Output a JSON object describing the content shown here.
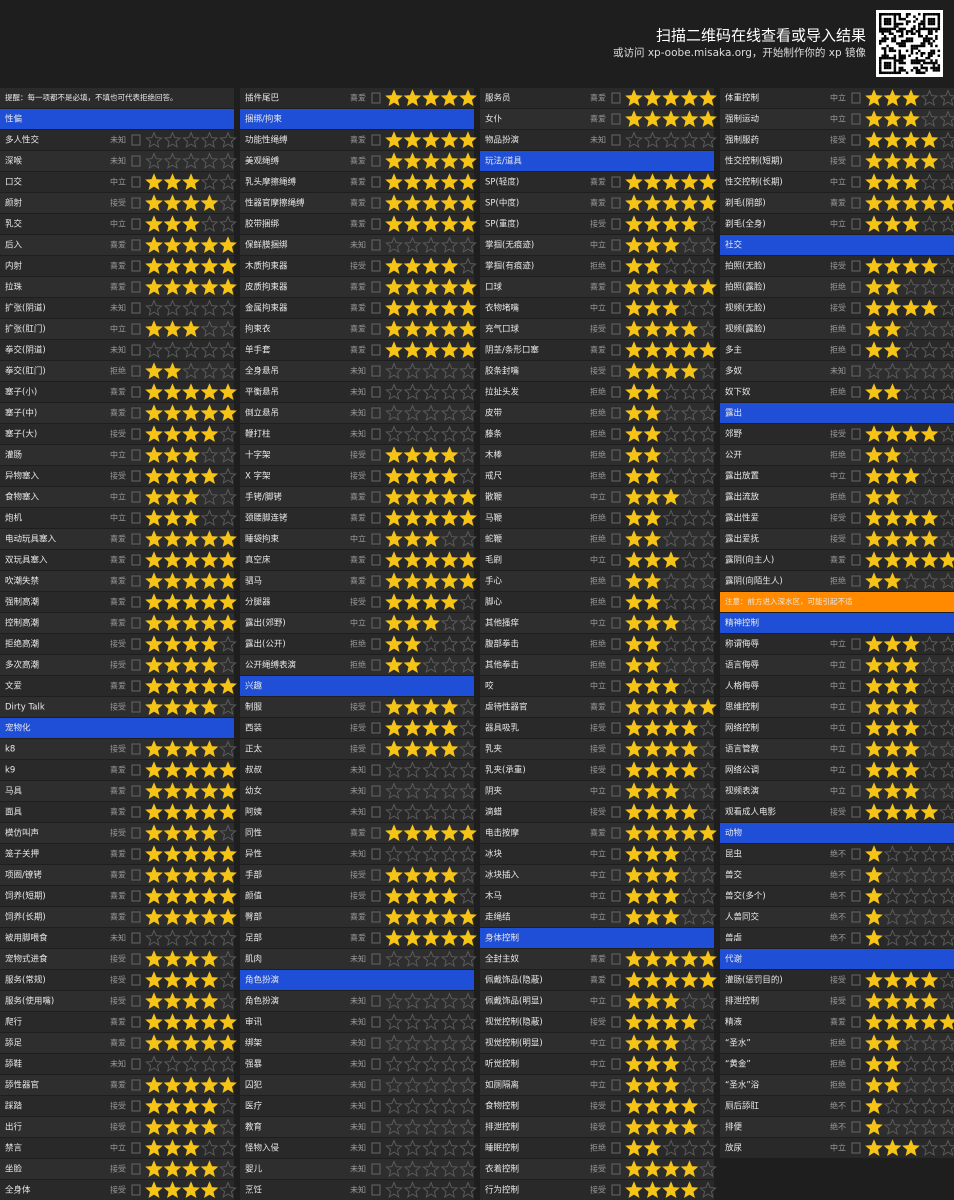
{
  "header": {
    "title": "扫描二维码在线查看或导入结果",
    "subtitle": "或访问 xp-oobe.misaka.org，开始制作你的 xp 镜像"
  },
  "columns": [
    {
      "rows": [
        {
          "note": "提醒：每一项都不是必填，不填也可代表拒绝回答。"
        },
        {
          "section": "性偏"
        },
        {
          "label": "多人性交",
          "status": "未知",
          "stars": 0
        },
        {
          "label": "深喉",
          "status": "未知",
          "stars": 0
        },
        {
          "label": "口交",
          "status": "中立",
          "stars": 3
        },
        {
          "label": "颜射",
          "status": "接受",
          "stars": 4
        },
        {
          "label": "乳交",
          "status": "中立",
          "stars": 3
        },
        {
          "label": "后入",
          "status": "喜爱",
          "stars": 5
        },
        {
          "label": "内射",
          "status": "喜爱",
          "stars": 5
        },
        {
          "label": "拉珠",
          "status": "喜爱",
          "stars": 5
        },
        {
          "label": "扩张(阴道)",
          "status": "未知",
          "stars": 0
        },
        {
          "label": "扩张(肛门)",
          "status": "中立",
          "stars": 3
        },
        {
          "label": "拳交(阴道)",
          "status": "未知",
          "stars": 0
        },
        {
          "label": "拳交(肛门)",
          "status": "拒绝",
          "stars": 2
        },
        {
          "label": "塞子(小)",
          "status": "喜爱",
          "stars": 5
        },
        {
          "label": "塞子(中)",
          "status": "喜爱",
          "stars": 5
        },
        {
          "label": "塞子(大)",
          "status": "接受",
          "stars": 4
        },
        {
          "label": "灌肠",
          "status": "中立",
          "stars": 3
        },
        {
          "label": "异物塞入",
          "status": "接受",
          "stars": 4
        },
        {
          "label": "食物塞入",
          "status": "中立",
          "stars": 3
        },
        {
          "label": "炮机",
          "status": "中立",
          "stars": 3
        },
        {
          "label": "电动玩具塞入",
          "status": "喜爱",
          "stars": 5
        },
        {
          "label": "双玩具塞入",
          "status": "喜爱",
          "stars": 5
        },
        {
          "label": "吹潮失禁",
          "status": "喜爱",
          "stars": 5
        },
        {
          "label": "强制高潮",
          "status": "喜爱",
          "stars": 5
        },
        {
          "label": "控制高潮",
          "status": "喜爱",
          "stars": 5
        },
        {
          "label": "拒绝高潮",
          "status": "接受",
          "stars": 4
        },
        {
          "label": "多次高潮",
          "status": "接受",
          "stars": 4
        },
        {
          "label": "文爱",
          "status": "喜爱",
          "stars": 5
        },
        {
          "label": "Dirty Talk",
          "status": "接受",
          "stars": 4
        },
        {
          "section": "宠物化"
        },
        {
          "label": "k8",
          "status": "接受",
          "stars": 4
        },
        {
          "label": "k9",
          "status": "喜爱",
          "stars": 5
        },
        {
          "label": "马具",
          "status": "喜爱",
          "stars": 5
        },
        {
          "label": "面具",
          "status": "喜爱",
          "stars": 5
        },
        {
          "label": "模仿叫声",
          "status": "接受",
          "stars": 4
        },
        {
          "label": "笼子关押",
          "status": "喜爱",
          "stars": 5
        },
        {
          "label": "项圈/镣铐",
          "status": "喜爱",
          "stars": 5
        },
        {
          "label": "饲养(短期)",
          "status": "喜爱",
          "stars": 5
        },
        {
          "label": "饲养(长期)",
          "status": "喜爱",
          "stars": 5
        },
        {
          "label": "被用脚喂食",
          "status": "未知",
          "stars": 0
        },
        {
          "label": "宠物式进食",
          "status": "接受",
          "stars": 4
        },
        {
          "label": "服务(常规)",
          "status": "接受",
          "stars": 4
        },
        {
          "label": "服务(使用嘴)",
          "status": "接受",
          "stars": 4
        },
        {
          "label": "爬行",
          "status": "喜爱",
          "stars": 5
        },
        {
          "label": "舔足",
          "status": "喜爱",
          "stars": 5
        },
        {
          "label": "舔鞋",
          "status": "未知",
          "stars": 0
        },
        {
          "label": "舔性器官",
          "status": "喜爱",
          "stars": 5
        },
        {
          "label": "踩踏",
          "status": "接受",
          "stars": 4
        },
        {
          "label": "出行",
          "status": "接受",
          "stars": 4
        },
        {
          "label": "禁言",
          "status": "中立",
          "stars": 3
        },
        {
          "label": "坐脸",
          "status": "接受",
          "stars": 4
        },
        {
          "label": "全身体",
          "status": "接受",
          "stars": 4
        }
      ]
    },
    {
      "rows": [
        {
          "label": "插件尾巴",
          "status": "喜爱",
          "stars": 5
        },
        {
          "section": "捆绑/拘束"
        },
        {
          "label": "功能性绳缚",
          "status": "喜爱",
          "stars": 5
        },
        {
          "label": "美观绳缚",
          "status": "喜爱",
          "stars": 5
        },
        {
          "label": "乳头摩擦绳缚",
          "status": "喜爱",
          "stars": 5
        },
        {
          "label": "性器官摩擦绳缚",
          "status": "喜爱",
          "stars": 5
        },
        {
          "label": "胶带捆绑",
          "status": "喜爱",
          "stars": 5
        },
        {
          "label": "保鲜膜捆绑",
          "status": "未知",
          "stars": 0
        },
        {
          "label": "木质拘束器",
          "status": "接受",
          "stars": 4
        },
        {
          "label": "皮质拘束器",
          "status": "喜爱",
          "stars": 5
        },
        {
          "label": "金属拘束器",
          "status": "喜爱",
          "stars": 5
        },
        {
          "label": "拘束衣",
          "status": "喜爱",
          "stars": 5
        },
        {
          "label": "单手套",
          "status": "喜爱",
          "stars": 5
        },
        {
          "label": "全身悬吊",
          "status": "未知",
          "stars": 0
        },
        {
          "label": "平衡悬吊",
          "status": "未知",
          "stars": 0
        },
        {
          "label": "倒立悬吊",
          "status": "未知",
          "stars": 0
        },
        {
          "label": "鞭打柱",
          "status": "未知",
          "stars": 0
        },
        {
          "label": "十字架",
          "status": "接受",
          "stars": 4
        },
        {
          "label": "X 字架",
          "status": "接受",
          "stars": 4
        },
        {
          "label": "手铐/脚铐",
          "status": "喜爱",
          "stars": 5
        },
        {
          "label": "颈腰脚连铐",
          "status": "喜爱",
          "stars": 5
        },
        {
          "label": "睡袋拘束",
          "status": "中立",
          "stars": 3
        },
        {
          "label": "真空床",
          "status": "喜爱",
          "stars": 5
        },
        {
          "label": "驷马",
          "status": "喜爱",
          "stars": 5
        },
        {
          "label": "分腿器",
          "status": "接受",
          "stars": 4
        },
        {
          "label": "露出(郊野)",
          "status": "中立",
          "stars": 3
        },
        {
          "label": "露出(公开)",
          "status": "拒绝",
          "stars": 2
        },
        {
          "label": "公开绳缚表演",
          "status": "拒绝",
          "stars": 2
        },
        {
          "section": "兴趣"
        },
        {
          "label": "制服",
          "status": "接受",
          "stars": 4
        },
        {
          "label": "西装",
          "status": "接受",
          "stars": 4
        },
        {
          "label": "正太",
          "status": "接受",
          "stars": 4
        },
        {
          "label": "叔叔",
          "status": "未知",
          "stars": 0
        },
        {
          "label": "幼女",
          "status": "未知",
          "stars": 0
        },
        {
          "label": "阿姨",
          "status": "未知",
          "stars": 0
        },
        {
          "label": "同性",
          "status": "喜爱",
          "stars": 5
        },
        {
          "label": "异性",
          "status": "未知",
          "stars": 0
        },
        {
          "label": "手部",
          "status": "接受",
          "stars": 4
        },
        {
          "label": "颜值",
          "status": "接受",
          "stars": 4
        },
        {
          "label": "臀部",
          "status": "喜爱",
          "stars": 5
        },
        {
          "label": "足部",
          "status": "喜爱",
          "stars": 5
        },
        {
          "label": "肌肉",
          "status": "未知",
          "stars": 0
        },
        {
          "section": "角色扮演"
        },
        {
          "label": "角色扮演",
          "status": "未知",
          "stars": 0
        },
        {
          "label": "审讯",
          "status": "未知",
          "stars": 0
        },
        {
          "label": "绑架",
          "status": "未知",
          "stars": 0
        },
        {
          "label": "强暴",
          "status": "未知",
          "stars": 0
        },
        {
          "label": "囚犯",
          "status": "未知",
          "stars": 0
        },
        {
          "label": "医疗",
          "status": "未知",
          "stars": 0
        },
        {
          "label": "教育",
          "status": "未知",
          "stars": 0
        },
        {
          "label": "怪物入侵",
          "status": "未知",
          "stars": 0
        },
        {
          "label": "婴儿",
          "status": "未知",
          "stars": 0
        },
        {
          "label": "烹饪",
          "status": "未知",
          "stars": 0
        }
      ]
    },
    {
      "rows": [
        {
          "label": "服务员",
          "status": "喜爱",
          "stars": 5
        },
        {
          "label": "女仆",
          "status": "喜爱",
          "stars": 5
        },
        {
          "label": "物品扮演",
          "status": "未知",
          "stars": 0
        },
        {
          "section": "玩法/道具"
        },
        {
          "label": "SP(轻度)",
          "status": "喜爱",
          "stars": 5
        },
        {
          "label": "SP(中度)",
          "status": "喜爱",
          "stars": 5
        },
        {
          "label": "SP(重度)",
          "status": "接受",
          "stars": 4
        },
        {
          "label": "掌掴(无痕迹)",
          "status": "中立",
          "stars": 3
        },
        {
          "label": "掌掴(有痕迹)",
          "status": "拒绝",
          "stars": 2
        },
        {
          "label": "口球",
          "status": "喜爱",
          "stars": 5
        },
        {
          "label": "衣物堵嘴",
          "status": "中立",
          "stars": 3
        },
        {
          "label": "充气口球",
          "status": "接受",
          "stars": 4
        },
        {
          "label": "阴茎/条形口塞",
          "status": "喜爱",
          "stars": 5
        },
        {
          "label": "胶条封嘴",
          "status": "接受",
          "stars": 4
        },
        {
          "label": "拉扯头发",
          "status": "拒绝",
          "stars": 2
        },
        {
          "label": "皮带",
          "status": "拒绝",
          "stars": 2
        },
        {
          "label": "藤条",
          "status": "拒绝",
          "stars": 2
        },
        {
          "label": "木棒",
          "status": "拒绝",
          "stars": 2
        },
        {
          "label": "戒尺",
          "status": "拒绝",
          "stars": 2
        },
        {
          "label": "散鞭",
          "status": "中立",
          "stars": 3
        },
        {
          "label": "马鞭",
          "status": "拒绝",
          "stars": 2
        },
        {
          "label": "蛇鞭",
          "status": "拒绝",
          "stars": 2
        },
        {
          "label": "毛刷",
          "status": "中立",
          "stars": 3
        },
        {
          "label": "手心",
          "status": "拒绝",
          "stars": 2
        },
        {
          "label": "脚心",
          "status": "拒绝",
          "stars": 2
        },
        {
          "label": "其他搔痒",
          "status": "中立",
          "stars": 3
        },
        {
          "label": "腹部拳击",
          "status": "拒绝",
          "stars": 2
        },
        {
          "label": "其他拳击",
          "status": "拒绝",
          "stars": 2
        },
        {
          "label": "咬",
          "status": "中立",
          "stars": 3
        },
        {
          "label": "虐待性器官",
          "status": "喜爱",
          "stars": 5
        },
        {
          "label": "器具吸乳",
          "status": "接受",
          "stars": 4
        },
        {
          "label": "乳夹",
          "status": "接受",
          "stars": 4
        },
        {
          "label": "乳夹(承重)",
          "status": "接受",
          "stars": 4
        },
        {
          "label": "阴夹",
          "status": "中立",
          "stars": 3
        },
        {
          "label": "滴蜡",
          "status": "接受",
          "stars": 4
        },
        {
          "label": "电击按摩",
          "status": "喜爱",
          "stars": 5
        },
        {
          "label": "冰块",
          "status": "中立",
          "stars": 3
        },
        {
          "label": "冰块插入",
          "status": "中立",
          "stars": 3
        },
        {
          "label": "木马",
          "status": "中立",
          "stars": 3
        },
        {
          "label": "走绳结",
          "status": "中立",
          "stars": 3
        },
        {
          "section": "身体控制"
        },
        {
          "label": "全封主奴",
          "status": "喜爱",
          "stars": 5
        },
        {
          "label": "佩戴饰品(隐蔽)",
          "status": "喜爱",
          "stars": 5
        },
        {
          "label": "佩戴饰品(明显)",
          "status": "中立",
          "stars": 3
        },
        {
          "label": "视觉控制(隐蔽)",
          "status": "接受",
          "stars": 4
        },
        {
          "label": "视觉控制(明显)",
          "status": "中立",
          "stars": 3
        },
        {
          "label": "听觉控制",
          "status": "中立",
          "stars": 3
        },
        {
          "label": "如厕隔离",
          "status": "中立",
          "stars": 3
        },
        {
          "label": "食物控制",
          "status": "接受",
          "stars": 4
        },
        {
          "label": "排泄控制",
          "status": "接受",
          "stars": 4
        },
        {
          "label": "睡眠控制",
          "status": "拒绝",
          "stars": 2
        },
        {
          "label": "衣着控制",
          "status": "接受",
          "stars": 4
        },
        {
          "label": "行为控制",
          "status": "接受",
          "stars": 4
        }
      ]
    },
    {
      "rows": [
        {
          "label": "体重控制",
          "status": "中立",
          "stars": 3
        },
        {
          "label": "强制运动",
          "status": "中立",
          "stars": 3
        },
        {
          "label": "强制服药",
          "status": "接受",
          "stars": 4
        },
        {
          "label": "性交控制(短期)",
          "status": "接受",
          "stars": 4
        },
        {
          "label": "性交控制(长期)",
          "status": "中立",
          "stars": 3
        },
        {
          "label": "剃毛(阴部)",
          "status": "喜爱",
          "stars": 5
        },
        {
          "label": "剃毛(全身)",
          "status": "中立",
          "stars": 3
        },
        {
          "section": "社交"
        },
        {
          "label": "拍照(无脸)",
          "status": "接受",
          "stars": 4
        },
        {
          "label": "拍照(露脸)",
          "status": "拒绝",
          "stars": 2
        },
        {
          "label": "视频(无脸)",
          "status": "接受",
          "stars": 4
        },
        {
          "label": "视频(露脸)",
          "status": "拒绝",
          "stars": 2
        },
        {
          "label": "多主",
          "status": "拒绝",
          "stars": 2
        },
        {
          "label": "多奴",
          "status": "未知",
          "stars": 0
        },
        {
          "label": "奴下奴",
          "status": "拒绝",
          "stars": 2
        },
        {
          "section": "露出"
        },
        {
          "label": "郊野",
          "status": "接受",
          "stars": 4
        },
        {
          "label": "公开",
          "status": "拒绝",
          "stars": 2
        },
        {
          "label": "露出放置",
          "status": "中立",
          "stars": 3
        },
        {
          "label": "露出流放",
          "status": "拒绝",
          "stars": 2
        },
        {
          "label": "露出性爱",
          "status": "接受",
          "stars": 4
        },
        {
          "label": "露出爱抚",
          "status": "接受",
          "stars": 4
        },
        {
          "label": "露阴(向主人)",
          "status": "喜爱",
          "stars": 5
        },
        {
          "label": "露阴(向陌生人)",
          "status": "拒绝",
          "stars": 2
        },
        {
          "warning": "注意：前方进入深水区，可能引起不适"
        },
        {
          "section": "精神控制"
        },
        {
          "label": "称谓侮辱",
          "status": "中立",
          "stars": 3
        },
        {
          "label": "语言侮辱",
          "status": "中立",
          "stars": 3
        },
        {
          "label": "人格侮辱",
          "status": "中立",
          "stars": 3
        },
        {
          "label": "思维控制",
          "status": "中立",
          "stars": 3
        },
        {
          "label": "网络控制",
          "status": "中立",
          "stars": 3
        },
        {
          "label": "语言管教",
          "status": "中立",
          "stars": 3
        },
        {
          "label": "网络公调",
          "status": "中立",
          "stars": 3
        },
        {
          "label": "视频表演",
          "status": "中立",
          "stars": 3
        },
        {
          "label": "观看成人电影",
          "status": "接受",
          "stars": 4
        },
        {
          "section": "动物"
        },
        {
          "label": "昆虫",
          "status": "绝不",
          "stars": 1
        },
        {
          "label": "兽交",
          "status": "绝不",
          "stars": 1
        },
        {
          "label": "兽交(多个)",
          "status": "绝不",
          "stars": 1
        },
        {
          "label": "人兽同交",
          "status": "绝不",
          "stars": 1
        },
        {
          "label": "兽虐",
          "status": "绝不",
          "stars": 1
        },
        {
          "section": "代谢"
        },
        {
          "label": "灌肠(惩罚目的)",
          "status": "接受",
          "stars": 4
        },
        {
          "label": "排泄控制",
          "status": "接受",
          "stars": 4
        },
        {
          "label": "精液",
          "status": "喜爱",
          "stars": 5
        },
        {
          "label": "“圣水”",
          "status": "拒绝",
          "stars": 2
        },
        {
          "label": "“黄金”",
          "status": "拒绝",
          "stars": 2
        },
        {
          "label": "“圣水”浴",
          "status": "拒绝",
          "stars": 2
        },
        {
          "label": "厕后舔肛",
          "status": "绝不",
          "stars": 1
        },
        {
          "label": "排便",
          "status": "绝不",
          "stars": 1
        },
        {
          "label": "放尿",
          "status": "中立",
          "stars": 3
        }
      ]
    }
  ]
}
